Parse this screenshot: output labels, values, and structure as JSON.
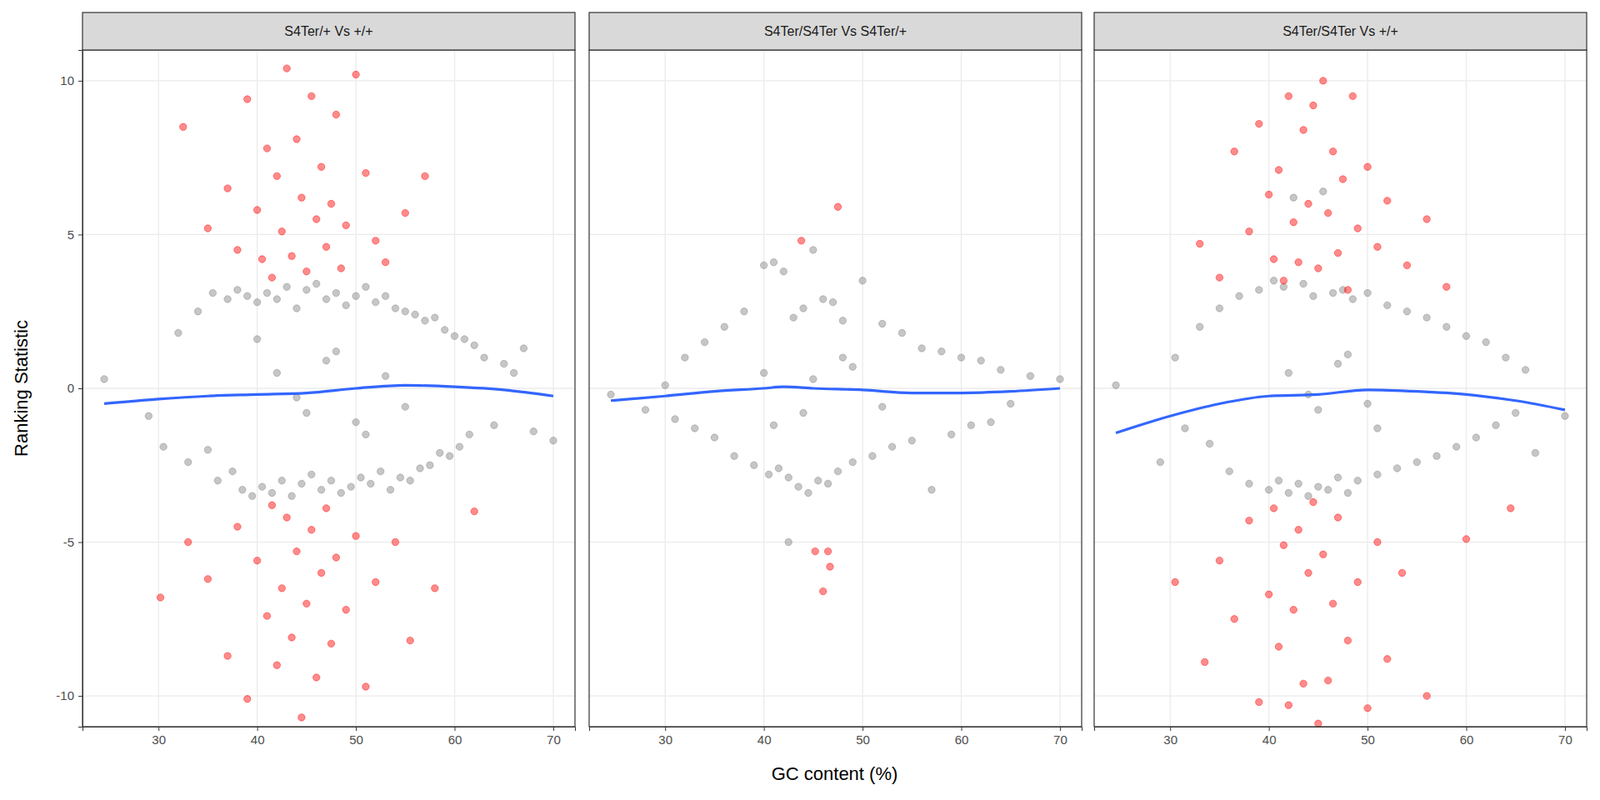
{
  "chart_data": {
    "type": "scatter",
    "x_label": "GC content (%)",
    "y_label": "Ranking Statistic",
    "xlim": [
      22.3,
      72.2
    ],
    "ylim": [
      -11,
      11
    ],
    "xticks": [
      30,
      40,
      50,
      60,
      70
    ],
    "yticks": [
      -10,
      -5,
      0,
      5,
      10
    ],
    "grid": true,
    "panels": [
      {
        "title": "S4Ter/+ Vs +/+",
        "series": [
          {
            "type": "scatter",
            "color": "#808080",
            "marker": "circle",
            "x": [
              24.5,
              29,
              30.5,
              32,
              33,
              34,
              35,
              35.5,
              36,
              37,
              37.5,
              38,
              38.5,
              39,
              39.5,
              40,
              40.5,
              41,
              41.5,
              42,
              42.5,
              43,
              43.5,
              44,
              44.5,
              45,
              45.5,
              46,
              46.5,
              47,
              47.5,
              48,
              48.5,
              49,
              49.5,
              50,
              50.5,
              51,
              51.5,
              52,
              52.5,
              53,
              53.5,
              54,
              54.5,
              55,
              55.5,
              56,
              56.5,
              57,
              57.5,
              58,
              58.5,
              59,
              59.5,
              60,
              60.5,
              61,
              61.5,
              62,
              63,
              64,
              65,
              66,
              67,
              68,
              70,
              42,
              45,
              48,
              51,
              44,
              47,
              50,
              53,
              40,
              55
            ],
            "values": [
              0.3,
              -0.9,
              -1.9,
              1.8,
              -2.4,
              2.5,
              -2.0,
              3.1,
              -3.0,
              2.9,
              -2.7,
              3.2,
              -3.3,
              3.0,
              -3.5,
              2.8,
              -3.2,
              3.1,
              -3.4,
              2.9,
              -3.0,
              3.3,
              -3.5,
              2.6,
              -3.1,
              3.2,
              -2.8,
              3.4,
              -3.3,
              2.9,
              -3.0,
              3.1,
              -3.4,
              2.7,
              -3.2,
              3.0,
              -2.9,
              3.3,
              -3.1,
              2.8,
              -2.7,
              3.0,
              -3.3,
              2.6,
              -2.9,
              2.5,
              -3.0,
              2.4,
              -2.6,
              2.2,
              -2.5,
              2.3,
              -2.1,
              1.9,
              -2.2,
              1.7,
              -1.9,
              1.6,
              -1.5,
              1.4,
              1.0,
              -1.2,
              0.8,
              0.5,
              1.3,
              -1.4,
              -1.7,
              0.5,
              -0.8,
              1.2,
              -1.5,
              -0.3,
              0.9,
              -1.1,
              0.4,
              1.6,
              -0.6
            ]
          },
          {
            "type": "scatter",
            "color": "#ff0000",
            "marker": "circle",
            "x": [
              32.5,
              35,
              37,
              38,
              39,
              40,
              40.5,
              41,
              41.5,
              42,
              42.5,
              43,
              43.5,
              44,
              44.5,
              45,
              45.5,
              46,
              46.5,
              47,
              47.5,
              48,
              48.5,
              49,
              50,
              51,
              52,
              53,
              55,
              57,
              30.2,
              33,
              35,
              37,
              38,
              39,
              40,
              41,
              41.5,
              42,
              42.5,
              43,
              43.5,
              44,
              44.5,
              45,
              45.5,
              46,
              46.5,
              47,
              47.5,
              48,
              49,
              50,
              51,
              52,
              54,
              55.5,
              58,
              62
            ],
            "values": [
              8.5,
              5.2,
              6.5,
              4.5,
              9.4,
              5.8,
              4.2,
              7.8,
              3.6,
              6.9,
              5.1,
              10.4,
              4.3,
              8.1,
              6.2,
              3.8,
              9.5,
              5.5,
              7.2,
              4.6,
              6.0,
              8.9,
              3.9,
              5.3,
              10.2,
              7.0,
              4.8,
              4.1,
              5.7,
              6.9,
              -6.8,
              -5.0,
              -6.2,
              -8.7,
              -4.5,
              -10.1,
              -5.6,
              -7.4,
              -3.8,
              -9.0,
              -6.5,
              -4.2,
              -8.1,
              -5.3,
              -10.7,
              -7.0,
              -4.6,
              -9.4,
              -6.0,
              -3.9,
              -8.3,
              -5.5,
              -7.2,
              -4.8,
              -9.7,
              -6.3,
              -5.0,
              -8.2,
              -6.5,
              -4.0
            ]
          },
          {
            "type": "line",
            "color": "#3366ff",
            "line_style": "solid",
            "x": [
              24.5,
              30,
              35,
              40,
              45,
              50,
              55,
              60,
              65,
              70
            ],
            "values": [
              -0.5,
              -0.35,
              -0.25,
              -0.2,
              -0.15,
              0.0,
              0.1,
              0.05,
              -0.05,
              -0.25
            ]
          }
        ]
      },
      {
        "title": "S4Ter/S4Ter Vs S4Ter/+",
        "series": [
          {
            "type": "scatter",
            "color": "#808080",
            "marker": "circle",
            "x": [
              24.5,
              28,
              30,
              31,
              32,
              33,
              34,
              35,
              36,
              37,
              38,
              39,
              40,
              40.5,
              41,
              41.5,
              42,
              42.5,
              43,
              43.5,
              44,
              44.5,
              45,
              45.5,
              46,
              46.5,
              47,
              47.5,
              48,
              49,
              50,
              51,
              52,
              53,
              54,
              55,
              56,
              57,
              58,
              59,
              60,
              61,
              62,
              63,
              64,
              65,
              67,
              70,
              40,
              44,
              48,
              52,
              41,
              45,
              49,
              42.5
            ],
            "values": [
              -0.2,
              -0.7,
              0.1,
              -1.0,
              1.0,
              -1.3,
              1.5,
              -1.6,
              2.0,
              -2.2,
              2.5,
              -2.5,
              4.0,
              -2.8,
              4.1,
              -2.6,
              3.8,
              -2.9,
              2.3,
              -3.2,
              2.6,
              -3.4,
              4.5,
              -3.0,
              2.9,
              -3.1,
              2.8,
              -2.7,
              2.2,
              -2.4,
              3.5,
              -2.2,
              2.1,
              -1.9,
              1.8,
              -1.7,
              1.3,
              -3.3,
              1.2,
              -1.5,
              1.0,
              -1.2,
              0.9,
              -1.1,
              0.6,
              -0.5,
              0.4,
              0.3,
              0.5,
              -0.8,
              1.0,
              -0.6,
              -1.2,
              0.3,
              0.7,
              -5.0
            ]
          },
          {
            "type": "scatter",
            "color": "#ff0000",
            "marker": "circle",
            "x": [
              43.8,
              47.5,
              45.2,
              46.5,
              46.7,
              46.0
            ],
            "values": [
              4.8,
              5.9,
              -5.3,
              -5.3,
              -5.8,
              -6.6
            ]
          },
          {
            "type": "line",
            "color": "#3366ff",
            "line_style": "solid",
            "x": [
              24.5,
              30,
              35,
              40,
              42,
              45,
              50,
              55,
              60,
              65,
              70
            ],
            "values": [
              -0.4,
              -0.25,
              -0.1,
              0.0,
              0.05,
              0.0,
              -0.05,
              -0.15,
              -0.15,
              -0.1,
              0.0
            ]
          }
        ]
      },
      {
        "title": "S4Ter/S4Ter Vs +/+",
        "series": [
          {
            "type": "scatter",
            "color": "#808080",
            "marker": "circle",
            "x": [
              24.5,
              29,
              30.5,
              31.5,
              33,
              34,
              35,
              36,
              37,
              38,
              39,
              40,
              40.5,
              41,
              41.5,
              42,
              42.5,
              43,
              43.5,
              44,
              44.5,
              45,
              45.5,
              46,
              46.5,
              47,
              47.5,
              48,
              48.5,
              49,
              50,
              51,
              52,
              53,
              54,
              55,
              56,
              57,
              58,
              59,
              60,
              61,
              62,
              63,
              64,
              65,
              66,
              67,
              70,
              42,
              45,
              48,
              51,
              44,
              47,
              50
            ],
            "values": [
              0.1,
              -2.4,
              1.0,
              -1.3,
              2.0,
              -1.8,
              2.6,
              -2.7,
              3.0,
              -3.1,
              3.2,
              -3.3,
              3.5,
              -3.0,
              3.3,
              -3.4,
              6.2,
              -3.1,
              3.4,
              -3.5,
              3.0,
              -3.2,
              6.4,
              -3.3,
              3.1,
              -2.9,
              3.2,
              -3.4,
              2.9,
              -3.0,
              3.1,
              -2.8,
              2.7,
              -2.6,
              2.5,
              -2.4,
              2.3,
              -2.2,
              2.0,
              -1.9,
              1.7,
              -1.6,
              1.5,
              -1.2,
              1.0,
              -0.8,
              0.6,
              -2.1,
              -0.9,
              0.5,
              -0.7,
              1.1,
              -1.3,
              -0.2,
              0.8,
              -0.5
            ]
          },
          {
            "type": "scatter",
            "color": "#ff0000",
            "marker": "circle",
            "x": [
              33,
              35,
              36.5,
              38,
              39,
              40,
              40.5,
              41,
              41.5,
              42,
              42.5,
              43,
              43.5,
              44,
              44.5,
              45,
              45.5,
              46,
              46.5,
              47,
              47.5,
              48,
              48.5,
              49,
              50,
              51,
              52,
              54,
              56,
              58,
              30.5,
              33.5,
              35,
              36.5,
              38,
              39,
              40,
              40.5,
              41,
              41.5,
              42,
              42.5,
              43,
              43.5,
              44,
              44.5,
              45,
              45.5,
              46,
              46.5,
              47,
              48,
              49,
              50,
              51,
              52,
              53.5,
              56,
              60,
              64.5
            ],
            "values": [
              4.7,
              3.6,
              7.7,
              5.1,
              8.6,
              6.3,
              4.2,
              7.1,
              3.5,
              9.5,
              5.4,
              4.1,
              8.4,
              6.0,
              9.2,
              3.9,
              10.0,
              5.7,
              7.7,
              4.4,
              6.8,
              3.2,
              9.5,
              5.2,
              7.2,
              4.6,
              6.1,
              4.0,
              5.5,
              3.3,
              -6.3,
              -8.9,
              -5.6,
              -7.5,
              -4.3,
              -10.2,
              -6.7,
              -3.9,
              -8.4,
              -5.1,
              -10.3,
              -7.2,
              -4.6,
              -9.6,
              -6.0,
              -3.7,
              -10.9,
              -5.4,
              -9.5,
              -7.0,
              -4.2,
              -8.2,
              -6.3,
              -10.4,
              -5.0,
              -8.8,
              -6.0,
              -10.0,
              -4.9,
              -3.9
            ]
          },
          {
            "type": "line",
            "color": "#3366ff",
            "line_style": "solid",
            "x": [
              24.5,
              30,
              35,
              40,
              45,
              50,
              55,
              60,
              65,
              70
            ],
            "values": [
              -1.45,
              -0.9,
              -0.5,
              -0.25,
              -0.2,
              -0.05,
              -0.1,
              -0.2,
              -0.4,
              -0.7
            ]
          }
        ]
      }
    ]
  }
}
